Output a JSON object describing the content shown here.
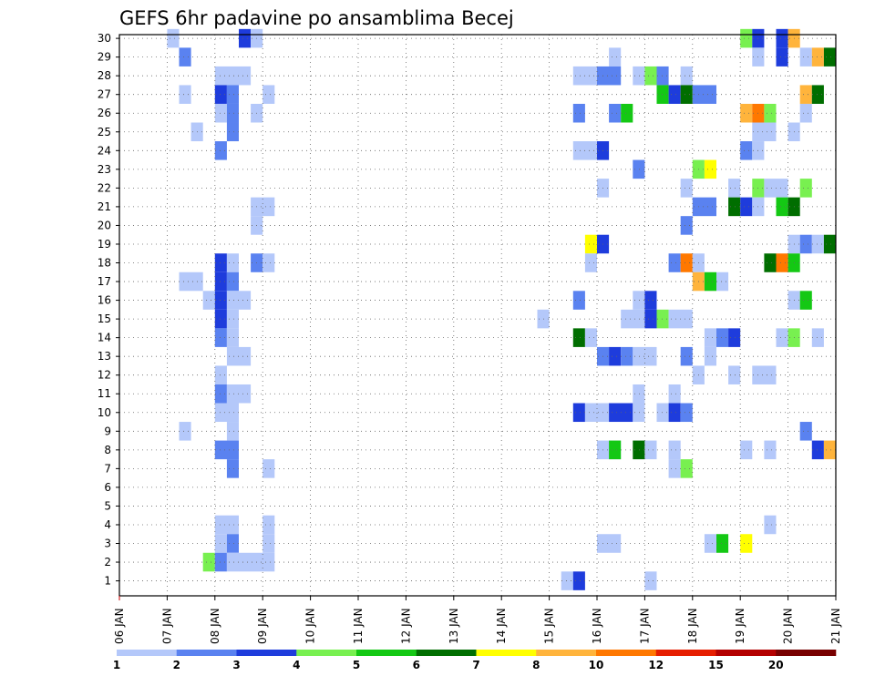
{
  "chart_data": {
    "type": "heatmap",
    "title": "GEFS 6hr padavine po ansamblima Becej",
    "xlabel": "",
    "ylabel": "",
    "x_tick_labels": [
      "06 JAN",
      "07 JAN",
      "08 JAN",
      "09 JAN",
      "10 JAN",
      "11 JAN",
      "12 JAN",
      "13 JAN",
      "14 JAN",
      "15 JAN",
      "16 JAN",
      "17 JAN",
      "18 JAN",
      "19 JAN",
      "20 JAN",
      "21 JAN"
    ],
    "y_tick_labels": [
      "1",
      "2",
      "3",
      "4",
      "5",
      "6",
      "7",
      "8",
      "9",
      "10",
      "11",
      "12",
      "13",
      "14",
      "15",
      "16",
      "17",
      "18",
      "19",
      "20",
      "21",
      "22",
      "23",
      "24",
      "25",
      "26",
      "27",
      "28",
      "29",
      "30"
    ],
    "xlim": [
      0,
      15
    ],
    "ylim": [
      0.2,
      30.2
    ],
    "grid": true,
    "time_step_days": 0.25,
    "colorbar": {
      "labels": [
        "1",
        "2",
        "3",
        "4",
        "5",
        "6",
        "7",
        "8",
        "10",
        "12",
        "15",
        "20"
      ],
      "colors": [
        "#b4c8fa",
        "#5a82f0",
        "#1e3cdc",
        "#78f050",
        "#14c814",
        "#006e00",
        "#ffff00",
        "#ffb43c",
        "#ff7800",
        "#e61e00",
        "#b40000",
        "#780000"
      ]
    },
    "cells": [
      [
        30,
        1.0,
        0.25,
        1
      ],
      [
        30,
        2.5,
        0.25,
        3
      ],
      [
        30,
        2.75,
        0.25,
        1
      ],
      [
        30,
        13.0,
        0.25,
        4
      ],
      [
        30,
        13.25,
        0.25,
        3
      ],
      [
        30,
        13.75,
        0.25,
        3
      ],
      [
        30,
        14.0,
        0.25,
        8
      ],
      [
        29,
        1.25,
        0.25,
        2
      ],
      [
        29,
        10.25,
        0.25,
        1
      ],
      [
        29,
        13.25,
        0.25,
        1
      ],
      [
        29,
        13.75,
        0.25,
        3
      ],
      [
        29,
        14.25,
        0.25,
        1
      ],
      [
        29,
        14.5,
        0.25,
        8
      ],
      [
        29,
        14.75,
        0.25,
        6
      ],
      [
        28,
        2.0,
        0.75,
        1
      ],
      [
        28,
        9.5,
        0.5,
        1
      ],
      [
        28,
        10.0,
        0.5,
        2
      ],
      [
        28,
        10.75,
        0.25,
        1
      ],
      [
        28,
        11.0,
        0.25,
        4
      ],
      [
        28,
        11.25,
        0.25,
        2
      ],
      [
        28,
        11.75,
        0.25,
        1
      ],
      [
        27,
        1.25,
        0.25,
        1
      ],
      [
        27,
        2.0,
        0.25,
        3
      ],
      [
        27,
        2.25,
        0.25,
        2
      ],
      [
        27,
        3.0,
        0.25,
        1
      ],
      [
        27,
        11.25,
        0.25,
        5
      ],
      [
        27,
        11.5,
        0.25,
        3
      ],
      [
        27,
        11.75,
        0.25,
        6
      ],
      [
        27,
        12.0,
        0.5,
        2
      ],
      [
        27,
        14.25,
        0.25,
        8
      ],
      [
        27,
        14.5,
        0.25,
        6
      ],
      [
        26,
        2.0,
        0.25,
        1
      ],
      [
        26,
        2.25,
        0.25,
        2
      ],
      [
        26,
        2.75,
        0.25,
        1
      ],
      [
        26,
        9.5,
        0.25,
        2
      ],
      [
        26,
        10.25,
        0.25,
        2
      ],
      [
        26,
        10.5,
        0.25,
        5
      ],
      [
        26,
        13.0,
        0.25,
        8
      ],
      [
        26,
        13.25,
        0.25,
        9
      ],
      [
        26,
        13.5,
        0.25,
        4
      ],
      [
        26,
        14.25,
        0.25,
        1
      ],
      [
        25,
        1.5,
        0.25,
        1
      ],
      [
        25,
        2.25,
        0.25,
        2
      ],
      [
        25,
        13.25,
        0.5,
        1
      ],
      [
        25,
        14.0,
        0.25,
        1
      ],
      [
        24,
        2.0,
        0.25,
        2
      ],
      [
        24,
        9.5,
        0.5,
        1
      ],
      [
        24,
        10.0,
        0.25,
        3
      ],
      [
        24,
        13.0,
        0.25,
        2
      ],
      [
        24,
        13.25,
        0.25,
        1
      ],
      [
        23,
        10.75,
        0.25,
        2
      ],
      [
        23,
        12.0,
        0.25,
        4
      ],
      [
        23,
        12.25,
        0.25,
        7
      ],
      [
        22,
        10.0,
        0.25,
        1
      ],
      [
        22,
        11.75,
        0.25,
        1
      ],
      [
        22,
        12.75,
        0.25,
        1
      ],
      [
        22,
        13.25,
        0.25,
        4
      ],
      [
        22,
        13.5,
        0.5,
        1
      ],
      [
        22,
        14.25,
        0.25,
        4
      ],
      [
        21,
        2.75,
        0.5,
        1
      ],
      [
        21,
        12.0,
        0.5,
        2
      ],
      [
        21,
        12.75,
        0.25,
        6
      ],
      [
        21,
        13.0,
        0.25,
        3
      ],
      [
        21,
        13.25,
        0.25,
        1
      ],
      [
        21,
        13.75,
        0.25,
        5
      ],
      [
        21,
        14.0,
        0.25,
        6
      ],
      [
        20,
        2.75,
        0.25,
        1
      ],
      [
        20,
        11.75,
        0.25,
        2
      ],
      [
        19,
        9.75,
        0.25,
        7
      ],
      [
        19,
        10.0,
        0.25,
        3
      ],
      [
        19,
        14.0,
        0.25,
        1
      ],
      [
        19,
        14.25,
        0.25,
        2
      ],
      [
        19,
        14.5,
        0.25,
        1
      ],
      [
        19,
        14.75,
        0.25,
        6
      ],
      [
        18,
        2.0,
        0.25,
        3
      ],
      [
        18,
        2.25,
        0.25,
        1
      ],
      [
        18,
        2.75,
        0.25,
        2
      ],
      [
        18,
        3.0,
        0.25,
        1
      ],
      [
        18,
        9.75,
        0.25,
        1
      ],
      [
        18,
        11.5,
        0.25,
        2
      ],
      [
        18,
        11.75,
        0.25,
        9
      ],
      [
        18,
        12.0,
        0.25,
        1
      ],
      [
        18,
        13.5,
        0.25,
        6
      ],
      [
        18,
        13.75,
        0.25,
        9
      ],
      [
        18,
        14.0,
        0.25,
        5
      ],
      [
        17,
        1.25,
        0.5,
        1
      ],
      [
        17,
        2.0,
        0.25,
        3
      ],
      [
        17,
        2.25,
        0.25,
        2
      ],
      [
        17,
        12.0,
        0.25,
        8
      ],
      [
        17,
        12.25,
        0.25,
        5
      ],
      [
        17,
        12.5,
        0.25,
        1
      ],
      [
        16,
        1.75,
        0.25,
        1
      ],
      [
        16,
        2.0,
        0.25,
        3
      ],
      [
        16,
        2.25,
        0.5,
        1
      ],
      [
        16,
        9.5,
        0.25,
        2
      ],
      [
        16,
        10.75,
        0.25,
        1
      ],
      [
        16,
        11.0,
        0.25,
        3
      ],
      [
        16,
        14.0,
        0.25,
        1
      ],
      [
        16,
        14.25,
        0.25,
        5
      ],
      [
        15,
        2.0,
        0.25,
        3
      ],
      [
        15,
        2.25,
        0.25,
        1
      ],
      [
        15,
        8.75,
        0.25,
        1
      ],
      [
        15,
        10.5,
        0.5,
        1
      ],
      [
        15,
        11.0,
        0.25,
        3
      ],
      [
        15,
        11.25,
        0.25,
        4
      ],
      [
        15,
        11.5,
        0.5,
        1
      ],
      [
        14,
        2.0,
        0.25,
        2
      ],
      [
        14,
        2.25,
        0.25,
        1
      ],
      [
        14,
        9.5,
        0.25,
        6
      ],
      [
        14,
        9.75,
        0.25,
        1
      ],
      [
        14,
        12.25,
        0.25,
        1
      ],
      [
        14,
        12.5,
        0.25,
        2
      ],
      [
        14,
        12.75,
        0.25,
        3
      ],
      [
        14,
        13.75,
        0.25,
        1
      ],
      [
        14,
        14.0,
        0.25,
        4
      ],
      [
        14,
        14.5,
        0.25,
        1
      ],
      [
        13,
        2.25,
        0.5,
        1
      ],
      [
        13,
        10.0,
        0.25,
        2
      ],
      [
        13,
        10.25,
        0.25,
        3
      ],
      [
        13,
        10.5,
        0.25,
        2
      ],
      [
        13,
        10.75,
        0.5,
        1
      ],
      [
        13,
        11.75,
        0.25,
        2
      ],
      [
        13,
        12.25,
        0.25,
        1
      ],
      [
        12,
        2.0,
        0.25,
        1
      ],
      [
        12,
        12.0,
        0.25,
        1
      ],
      [
        12,
        12.75,
        0.25,
        1
      ],
      [
        12,
        13.25,
        0.5,
        1
      ],
      [
        11,
        2.0,
        0.25,
        2
      ],
      [
        11,
        2.25,
        0.5,
        1
      ],
      [
        11,
        10.75,
        0.25,
        1
      ],
      [
        11,
        11.5,
        0.25,
        1
      ],
      [
        10,
        2.0,
        0.5,
        1
      ],
      [
        10,
        9.5,
        0.25,
        3
      ],
      [
        10,
        9.75,
        0.5,
        1
      ],
      [
        10,
        10.25,
        0.5,
        3
      ],
      [
        10,
        10.75,
        0.25,
        1
      ],
      [
        10,
        11.25,
        0.25,
        1
      ],
      [
        10,
        11.5,
        0.25,
        3
      ],
      [
        10,
        11.75,
        0.25,
        2
      ],
      [
        9,
        1.25,
        0.25,
        1
      ],
      [
        9,
        2.25,
        0.25,
        1
      ],
      [
        9,
        14.25,
        0.25,
        2
      ],
      [
        8,
        2.0,
        0.5,
        2
      ],
      [
        8,
        10.0,
        0.5,
        1
      ],
      [
        8,
        10.25,
        0.25,
        5
      ],
      [
        8,
        10.75,
        0.25,
        6
      ],
      [
        8,
        11.0,
        0.25,
        1
      ],
      [
        8,
        11.5,
        0.25,
        1
      ],
      [
        8,
        13.0,
        0.25,
        1
      ],
      [
        8,
        13.5,
        0.25,
        1
      ],
      [
        8,
        14.5,
        0.25,
        3
      ],
      [
        8,
        14.75,
        0.25,
        8
      ],
      [
        7,
        2.25,
        0.25,
        2
      ],
      [
        7,
        3.0,
        0.25,
        1
      ],
      [
        7,
        11.5,
        0.25,
        1
      ],
      [
        7,
        11.75,
        0.25,
        4
      ],
      [
        4,
        2.0,
        0.5,
        1
      ],
      [
        4,
        3.0,
        0.25,
        1
      ],
      [
        4,
        13.5,
        0.25,
        1
      ],
      [
        3,
        2.0,
        0.25,
        1
      ],
      [
        3,
        2.25,
        0.25,
        2
      ],
      [
        3,
        3.0,
        0.25,
        1
      ],
      [
        3,
        10.0,
        0.5,
        1
      ],
      [
        3,
        12.25,
        0.25,
        1
      ],
      [
        3,
        12.5,
        0.25,
        5
      ],
      [
        3,
        13.0,
        0.25,
        7
      ],
      [
        2,
        1.75,
        0.25,
        4
      ],
      [
        2,
        2.0,
        0.25,
        2
      ],
      [
        2,
        2.25,
        1.0,
        1
      ],
      [
        1,
        9.25,
        0.25,
        1
      ],
      [
        1,
        9.5,
        0.25,
        3
      ],
      [
        1,
        11.0,
        0.25,
        1
      ]
    ]
  }
}
